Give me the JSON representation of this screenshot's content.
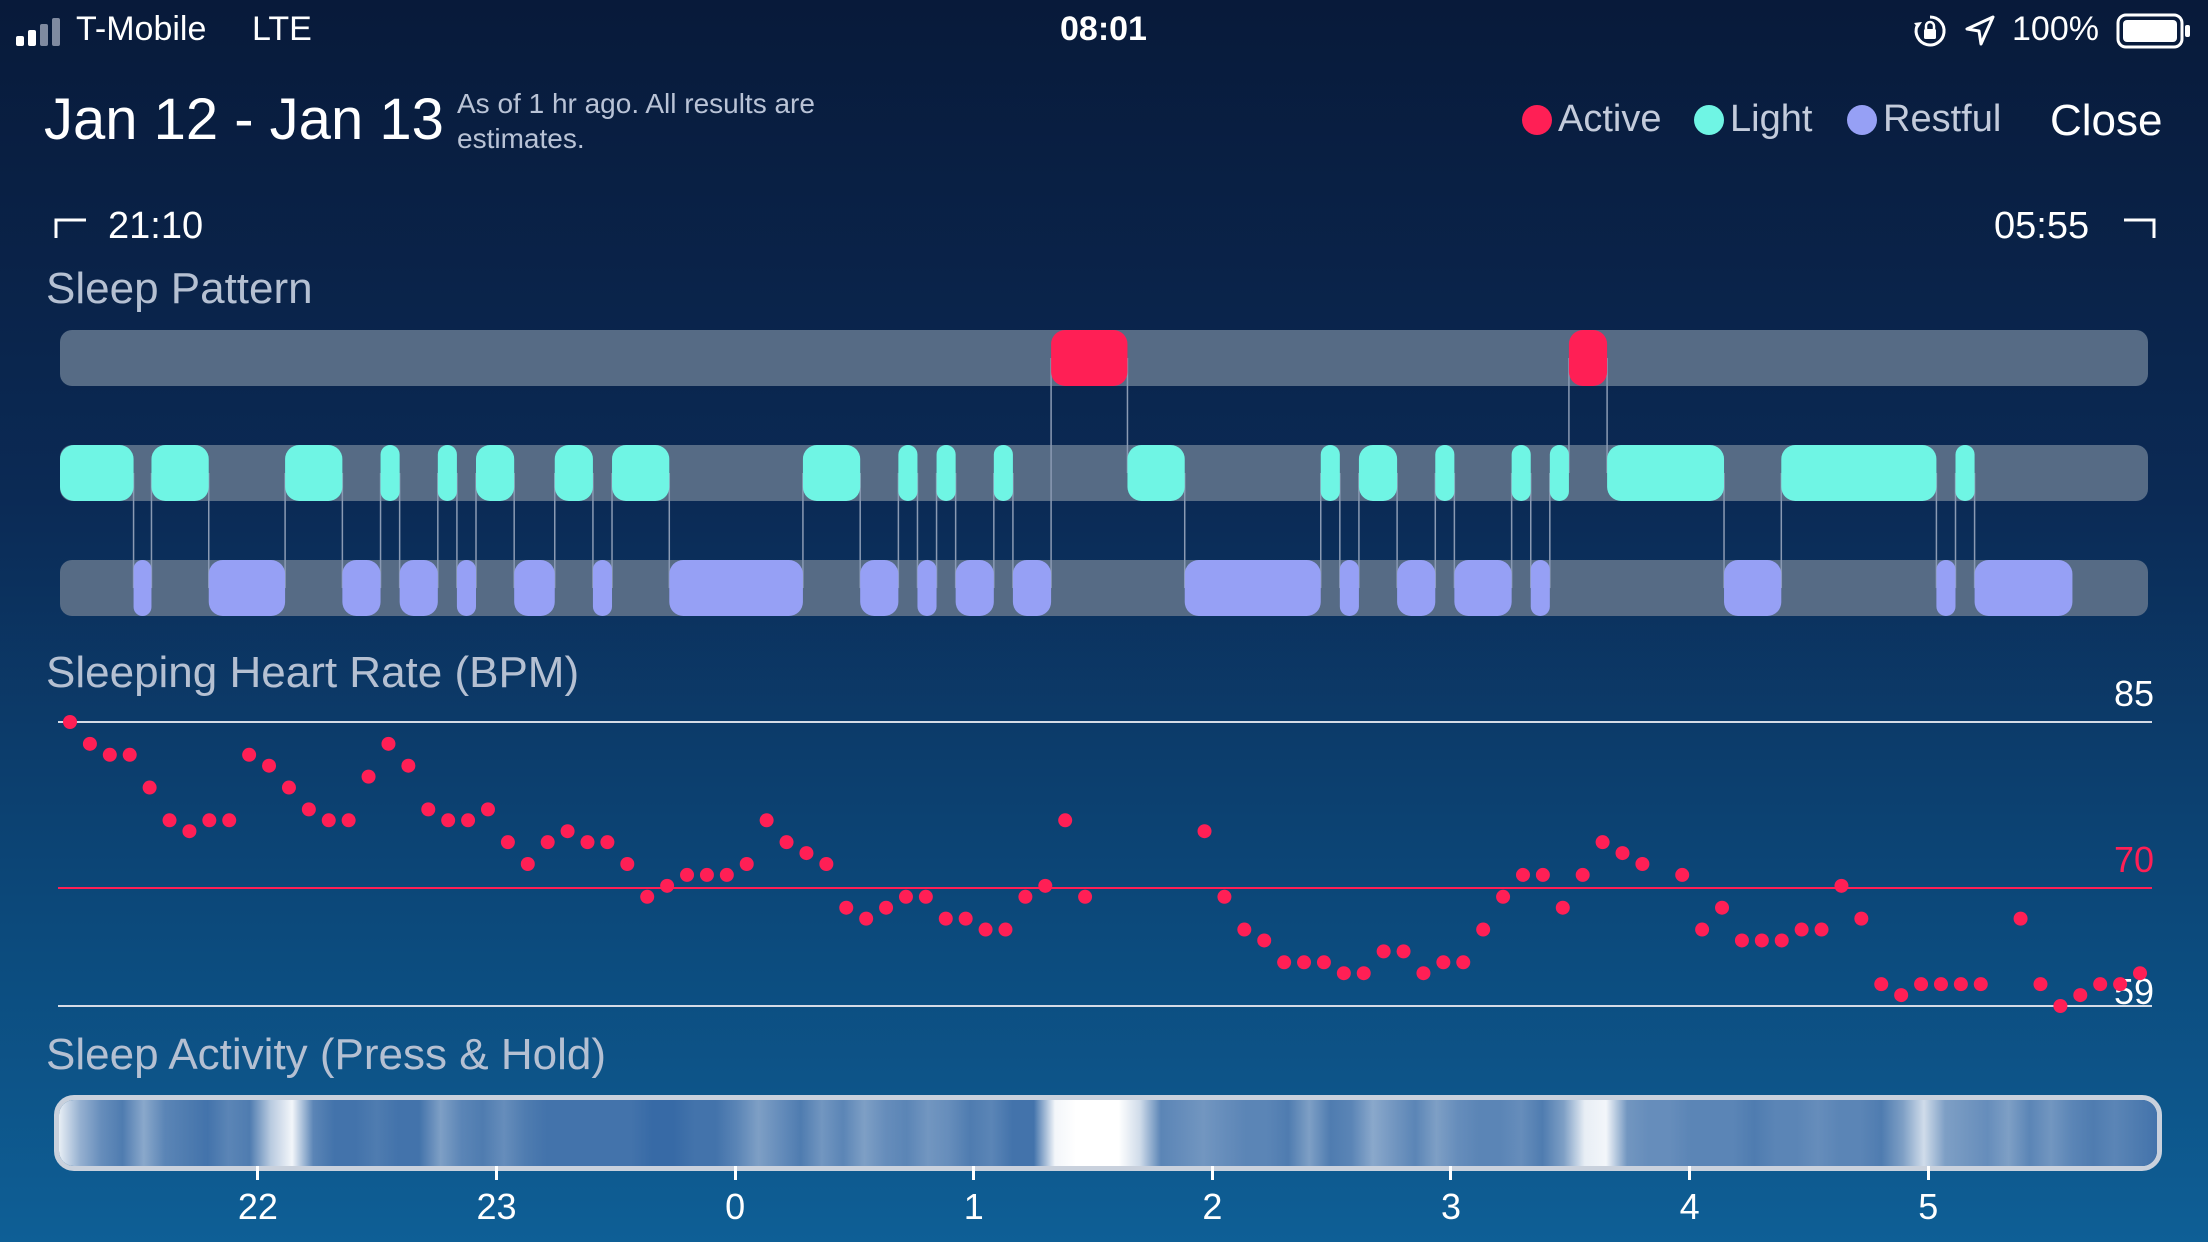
{
  "status_bar": {
    "carrier": "T-Mobile",
    "network": "LTE",
    "time": "08:01",
    "battery": "100%",
    "icons": [
      "signal-bars-icon",
      "orientation-lock-icon",
      "location-arrow-icon",
      "battery-icon"
    ]
  },
  "header": {
    "date_range": "Jan 12 - Jan 13",
    "note": "As of 1 hr ago. All results are estimates.",
    "legend": [
      {
        "label": "Active",
        "color": "#ff1f55"
      },
      {
        "label": "Light",
        "color": "#6ff5e4"
      },
      {
        "label": "Restful",
        "color": "#96a0f5"
      }
    ],
    "close_label": "Close"
  },
  "range": {
    "start": "21:10",
    "end": "05:55"
  },
  "sleep_pattern": {
    "title": "Sleep Pattern",
    "start_hour": 21.1667,
    "end_hour": 29.9167,
    "colors": {
      "active": "#ff1f55",
      "light": "#6ff5e4",
      "restful": "#96a0f5",
      "track": "#566b85"
    },
    "stages": [
      {
        "stage": "light",
        "start": 21.1667,
        "end": 21.475
      },
      {
        "stage": "restful",
        "start": 21.475,
        "end": 21.55
      },
      {
        "stage": "light",
        "start": 21.55,
        "end": 21.79
      },
      {
        "stage": "restful",
        "start": 21.79,
        "end": 22.11
      },
      {
        "stage": "light",
        "start": 22.11,
        "end": 22.35
      },
      {
        "stage": "restful",
        "start": 22.35,
        "end": 22.51
      },
      {
        "stage": "light",
        "start": 22.51,
        "end": 22.59
      },
      {
        "stage": "restful",
        "start": 22.59,
        "end": 22.75
      },
      {
        "stage": "light",
        "start": 22.75,
        "end": 22.83
      },
      {
        "stage": "restful",
        "start": 22.83,
        "end": 22.91
      },
      {
        "stage": "light",
        "start": 22.91,
        "end": 23.07
      },
      {
        "stage": "restful",
        "start": 23.07,
        "end": 23.24
      },
      {
        "stage": "light",
        "start": 23.24,
        "end": 23.4
      },
      {
        "stage": "restful",
        "start": 23.4,
        "end": 23.48
      },
      {
        "stage": "light",
        "start": 23.48,
        "end": 23.72
      },
      {
        "stage": "restful",
        "start": 23.72,
        "end": 24.28
      },
      {
        "stage": "light",
        "start": 24.28,
        "end": 24.52
      },
      {
        "stage": "restful",
        "start": 24.52,
        "end": 24.68
      },
      {
        "stage": "light",
        "start": 24.68,
        "end": 24.76
      },
      {
        "stage": "restful",
        "start": 24.76,
        "end": 24.84
      },
      {
        "stage": "light",
        "start": 24.84,
        "end": 24.92
      },
      {
        "stage": "restful",
        "start": 24.92,
        "end": 25.08
      },
      {
        "stage": "light",
        "start": 25.08,
        "end": 25.16
      },
      {
        "stage": "restful",
        "start": 25.16,
        "end": 25.32
      },
      {
        "stage": "active",
        "start": 25.32,
        "end": 25.64
      },
      {
        "stage": "light",
        "start": 25.64,
        "end": 25.88
      },
      {
        "stage": "restful",
        "start": 25.88,
        "end": 26.45
      },
      {
        "stage": "light",
        "start": 26.45,
        "end": 26.53
      },
      {
        "stage": "restful",
        "start": 26.53,
        "end": 26.61
      },
      {
        "stage": "light",
        "start": 26.61,
        "end": 26.77
      },
      {
        "stage": "restful",
        "start": 26.77,
        "end": 26.93
      },
      {
        "stage": "light",
        "start": 26.93,
        "end": 27.01
      },
      {
        "stage": "restful",
        "start": 27.01,
        "end": 27.25
      },
      {
        "stage": "light",
        "start": 27.25,
        "end": 27.33
      },
      {
        "stage": "restful",
        "start": 27.33,
        "end": 27.41
      },
      {
        "stage": "light",
        "start": 27.41,
        "end": 27.49
      },
      {
        "stage": "active",
        "start": 27.49,
        "end": 27.65
      },
      {
        "stage": "light",
        "start": 27.65,
        "end": 28.14
      },
      {
        "stage": "restful",
        "start": 28.14,
        "end": 28.38
      },
      {
        "stage": "light",
        "start": 28.38,
        "end": 29.03
      },
      {
        "stage": "restful",
        "start": 29.03,
        "end": 29.11
      },
      {
        "stage": "light",
        "start": 29.11,
        "end": 29.19
      },
      {
        "stage": "restful",
        "start": 29.19,
        "end": 29.6
      }
    ]
  },
  "heart_rate": {
    "title": "Sleeping Heart Rate (BPM)",
    "max_label": "85",
    "avg_label": "70",
    "min_label": "59",
    "max": 85,
    "avg": 70,
    "min": 59,
    "dot_color": "#ff1f55",
    "values": [
      85,
      83,
      82,
      82,
      79,
      76,
      75,
      76,
      76,
      82,
      81,
      79,
      77,
      76,
      76,
      80,
      83,
      81,
      77,
      76,
      76,
      77,
      74,
      72,
      74,
      75,
      74,
      74,
      72,
      69,
      70,
      71,
      71,
      71,
      72,
      76,
      74,
      73,
      72,
      68,
      67,
      68,
      69,
      69,
      67,
      67,
      66,
      66,
      69,
      70,
      76,
      69,
      null,
      null,
      null,
      null,
      null,
      75,
      69,
      66,
      65,
      63,
      63,
      63,
      62,
      62,
      64,
      64,
      62,
      63,
      63,
      66,
      69,
      71,
      71,
      68,
      71,
      74,
      73,
      72,
      null,
      71,
      66,
      68,
      65,
      65,
      65,
      66,
      66,
      70,
      67,
      61,
      60,
      61,
      61,
      61,
      61,
      null,
      67,
      61,
      59,
      60,
      61,
      61,
      62
    ]
  },
  "sleep_activity": {
    "title": "Sleep Activity (Press & Hold)",
    "x_ticks": [
      "22",
      "23",
      "0",
      "1",
      "2",
      "3",
      "4",
      "5"
    ],
    "tick_hours": [
      22,
      23,
      24,
      25,
      26,
      27,
      28,
      29
    ],
    "intensity": [
      0.9,
      0.55,
      0.35,
      0.25,
      0.5,
      0.3,
      0.25,
      0.2,
      0.3,
      0.25,
      0.7,
      0.95,
      0.3,
      0.2,
      0.2,
      0.25,
      0.2,
      0.2,
      0.45,
      0.3,
      0.25,
      0.35,
      0.25,
      0.2,
      0.2,
      0.2,
      0.2,
      0.2,
      0.15,
      0.15,
      0.2,
      0.2,
      0.3,
      0.45,
      0.35,
      0.25,
      0.4,
      0.3,
      0.45,
      0.35,
      0.3,
      0.4,
      0.35,
      0.25,
      0.3,
      0.2,
      0.2,
      0.95,
      1,
      1,
      1,
      0.8,
      0.3,
      0.35,
      0.4,
      0.35,
      0.3,
      0.3,
      0.25,
      0.45,
      0.25,
      0.3,
      0.5,
      0.4,
      0.3,
      0.45,
      0.35,
      0.3,
      0.3,
      0.35,
      0.25,
      0.45,
      0.9,
      0.95,
      0.4,
      0.35,
      0.35,
      0.3,
      0.3,
      0.3,
      0.25,
      0.3,
      0.3,
      0.35,
      0.3,
      0.3,
      0.25,
      0.45,
      0.8,
      0.45,
      0.4,
      0.35,
      0.45,
      0.3,
      0.4,
      0.3,
      0.25,
      0.3,
      0.25,
      0.2
    ]
  }
}
